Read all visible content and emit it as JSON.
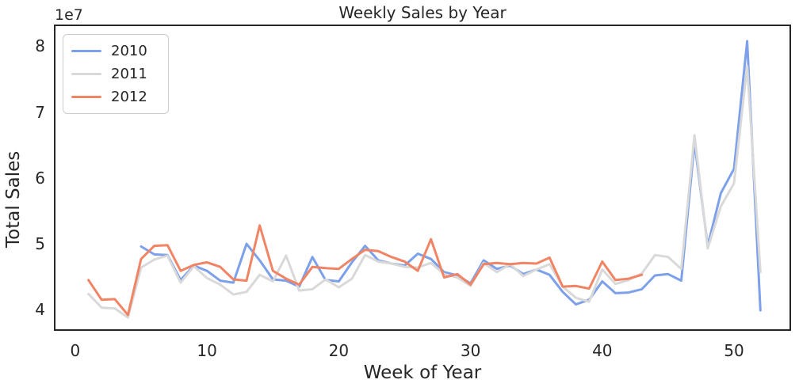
{
  "figure": {
    "title": "Weekly Sales by Year",
    "xlabel": "Week of Year",
    "ylabel": "Total Sales",
    "y_axis_offset_text": "1e7",
    "background_color": "#ffffff",
    "spine_color": "#262626",
    "text_color": "#262626"
  },
  "chart_data": {
    "type": "line",
    "title": "Weekly Sales by Year",
    "xlabel": "Week of Year",
    "ylabel": "Total Sales",
    "values_scale": "1e7",
    "grid": false,
    "legend_position": "upper left",
    "xlim": [
      -1.56,
      54.27
    ],
    "ylim": [
      3.7,
      8.33
    ],
    "xticks": [
      0,
      10,
      20,
      30,
      40,
      50
    ],
    "xtick_labels": [
      "0",
      "10",
      "20",
      "30",
      "40",
      "50"
    ],
    "yticks": [
      4,
      5,
      6,
      7,
      8
    ],
    "ytick_labels": [
      "4",
      "5",
      "6",
      "7",
      "8"
    ],
    "series": [
      {
        "name": "2010",
        "color": "#7da0eb",
        "x": [
          5,
          6,
          7,
          8,
          9,
          10,
          11,
          12,
          13,
          14,
          15,
          16,
          17,
          18,
          19,
          20,
          21,
          22,
          23,
          24,
          25,
          26,
          27,
          28,
          29,
          30,
          31,
          32,
          33,
          34,
          35,
          36,
          37,
          38,
          39,
          40,
          41,
          42,
          43,
          44,
          45,
          46,
          47,
          48,
          49,
          50,
          51,
          52
        ],
        "values": [
          4.97,
          4.85,
          4.84,
          4.46,
          4.68,
          4.6,
          4.45,
          4.42,
          5.01,
          4.76,
          4.47,
          4.45,
          4.36,
          4.81,
          4.46,
          4.44,
          4.73,
          4.98,
          4.76,
          4.71,
          4.68,
          4.86,
          4.78,
          4.58,
          4.53,
          4.41,
          4.76,
          4.63,
          4.68,
          4.55,
          4.62,
          4.54,
          4.28,
          4.09,
          4.16,
          4.44,
          4.26,
          4.27,
          4.32,
          4.53,
          4.55,
          4.45,
          6.55,
          4.98,
          5.78,
          6.15,
          8.09,
          4.0
        ]
      },
      {
        "name": "2011",
        "color": "#d9d9d9",
        "x": [
          1,
          2,
          3,
          4,
          5,
          6,
          7,
          8,
          9,
          10,
          11,
          12,
          13,
          14,
          15,
          16,
          17,
          18,
          19,
          20,
          21,
          22,
          23,
          24,
          25,
          26,
          27,
          28,
          29,
          30,
          31,
          32,
          33,
          34,
          35,
          36,
          37,
          38,
          39,
          40,
          41,
          42,
          43,
          44,
          45,
          46,
          47,
          48,
          49,
          50,
          51,
          52
        ],
        "values": [
          4.25,
          4.04,
          4.03,
          3.89,
          4.65,
          4.77,
          4.83,
          4.42,
          4.67,
          4.49,
          4.39,
          4.24,
          4.28,
          4.54,
          4.44,
          4.83,
          4.3,
          4.32,
          4.47,
          4.35,
          4.48,
          4.84,
          4.74,
          4.71,
          4.66,
          4.65,
          4.72,
          4.55,
          4.5,
          4.37,
          4.72,
          4.58,
          4.7,
          4.52,
          4.62,
          4.7,
          4.36,
          4.19,
          4.13,
          4.62,
          4.4,
          4.46,
          4.56,
          4.84,
          4.81,
          4.63,
          6.66,
          4.94,
          5.58,
          5.93,
          7.71,
          4.58
        ]
      },
      {
        "name": "2012",
        "color": "#f08464",
        "x": [
          1,
          2,
          3,
          4,
          5,
          6,
          7,
          8,
          9,
          10,
          11,
          12,
          13,
          14,
          15,
          16,
          17,
          18,
          19,
          20,
          21,
          22,
          23,
          24,
          25,
          26,
          27,
          28,
          29,
          30,
          31,
          32,
          33,
          34,
          35,
          36,
          37,
          38,
          39,
          40,
          41,
          42,
          43
        ],
        "values": [
          4.46,
          4.16,
          4.17,
          3.93,
          4.78,
          4.98,
          4.99,
          4.6,
          4.69,
          4.73,
          4.66,
          4.47,
          4.45,
          5.29,
          4.6,
          4.48,
          4.39,
          4.66,
          4.64,
          4.63,
          4.78,
          4.92,
          4.9,
          4.81,
          4.74,
          4.6,
          5.08,
          4.5,
          4.55,
          4.39,
          4.7,
          4.72,
          4.7,
          4.72,
          4.71,
          4.8,
          4.36,
          4.37,
          4.33,
          4.74,
          4.46,
          4.48,
          4.54
        ]
      }
    ]
  }
}
